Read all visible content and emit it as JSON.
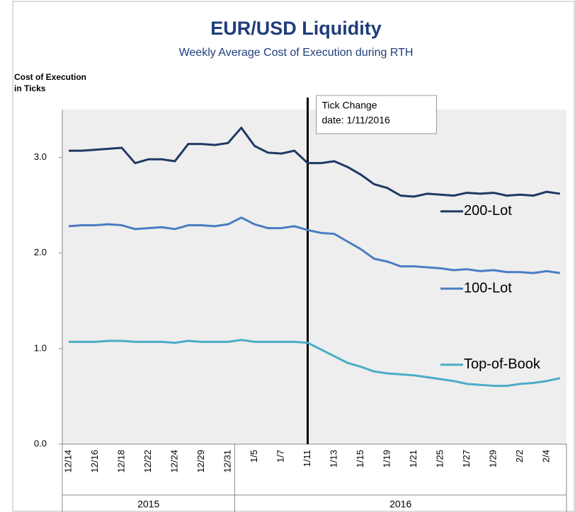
{
  "chart_data": {
    "type": "line",
    "title": "EUR/USD Liquidity",
    "subtitle": "Weekly Average Cost of Execution during RTH",
    "y_label": [
      "Cost of Execution",
      "in Ticks"
    ],
    "categories": [
      "12/14",
      null,
      "12/16",
      null,
      "12/18",
      null,
      "12/22",
      null,
      "12/24",
      null,
      "12/29",
      null,
      "12/31",
      null,
      "1/5",
      null,
      "1/7",
      null,
      "1/11",
      null,
      "1/13",
      null,
      "1/15",
      null,
      "1/19",
      null,
      "1/21",
      null,
      "1/25",
      null,
      "1/27",
      null,
      "1/29",
      null,
      "2/2",
      null,
      "2/4",
      null
    ],
    "year_groups": [
      {
        "label": "2015",
        "start": 0,
        "end": 12
      },
      {
        "label": "2016",
        "start": 13,
        "end": 37
      }
    ],
    "series": [
      {
        "name": "200-Lot",
        "color": "#1f3864",
        "values": [
          3.07,
          3.07,
          3.08,
          3.09,
          3.1,
          2.94,
          2.98,
          2.98,
          2.96,
          3.14,
          3.14,
          3.13,
          3.15,
          3.31,
          3.12,
          3.05,
          3.04,
          3.07,
          2.94,
          2.94,
          2.96,
          2.9,
          2.82,
          2.72,
          2.68,
          2.6,
          2.59,
          2.62,
          2.61,
          2.6,
          2.63,
          2.62,
          2.63,
          2.6,
          2.61,
          2.6,
          2.64,
          2.62
        ]
      },
      {
        "name": "100-Lot",
        "color": "#4a7cc4",
        "values": [
          2.28,
          2.29,
          2.29,
          2.3,
          2.29,
          2.25,
          2.26,
          2.27,
          2.25,
          2.29,
          2.29,
          2.28,
          2.3,
          2.37,
          2.3,
          2.26,
          2.26,
          2.28,
          2.24,
          2.21,
          2.2,
          2.12,
          2.04,
          1.94,
          1.91,
          1.86,
          1.86,
          1.85,
          1.84,
          1.82,
          1.83,
          1.81,
          1.82,
          1.8,
          1.8,
          1.79,
          1.81,
          1.79
        ]
      },
      {
        "name": "Top-of-Book",
        "color": "#4bacc6",
        "values": [
          1.07,
          1.07,
          1.07,
          1.08,
          1.08,
          1.07,
          1.07,
          1.07,
          1.06,
          1.08,
          1.07,
          1.07,
          1.07,
          1.09,
          1.07,
          1.07,
          1.07,
          1.07,
          1.06,
          0.99,
          0.92,
          0.85,
          0.81,
          0.76,
          0.74,
          0.73,
          0.72,
          0.7,
          0.68,
          0.66,
          0.63,
          0.62,
          0.61,
          0.61,
          0.63,
          0.64,
          0.66,
          0.69
        ]
      }
    ],
    "ylim": [
      0,
      3.5
    ],
    "yticks": [
      {
        "value": 0,
        "label": "0.0"
      },
      {
        "value": 1,
        "label": "1.0"
      },
      {
        "value": 2,
        "label": "2.0"
      },
      {
        "value": 3,
        "label": "3.0"
      }
    ],
    "annotation": {
      "text": [
        "Tick Change",
        "date: 1/11/2016"
      ],
      "at": "1/11"
    }
  }
}
